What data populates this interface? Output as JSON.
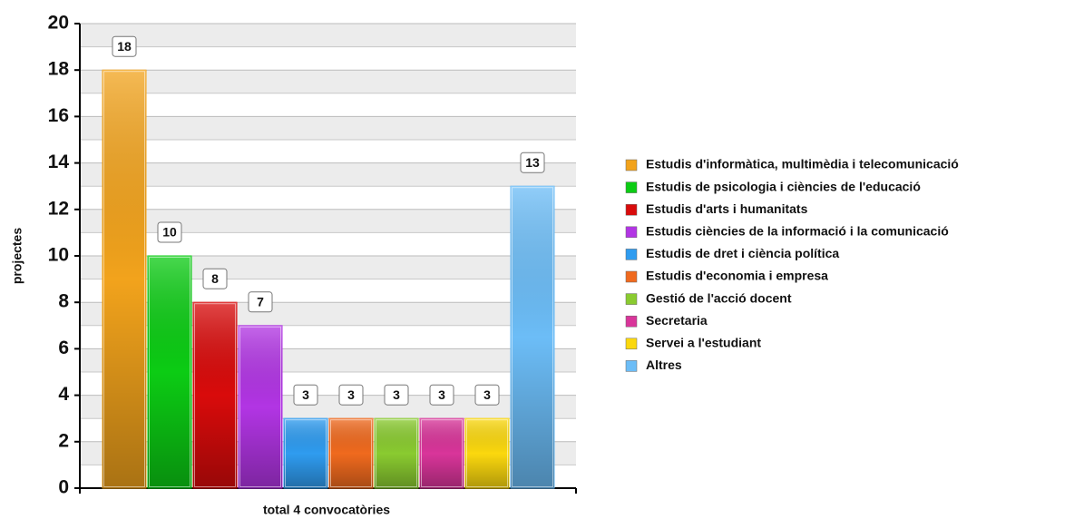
{
  "chart_data": {
    "type": "bar",
    "y_label": "projectes",
    "categories": [
      "total 4 convocatòries"
    ],
    "series": [
      {
        "name": "Estudis d'informàtica, multimèdia i telecomunicació",
        "color": "#f2a31c",
        "values": [
          18
        ]
      },
      {
        "name": "Estudis de psicologia i ciències de l'educació",
        "color": "#0ccc14",
        "values": [
          10
        ]
      },
      {
        "name": "Estudis d'arts i humanitats",
        "color": "#d90b0b",
        "values": [
          8
        ]
      },
      {
        "name": "Estudis ciències de la informació i la comunicació",
        "color": "#b235e4",
        "values": [
          7
        ]
      },
      {
        "name": "Estudis de dret i ciència política",
        "color": "#2f9cf0",
        "values": [
          3
        ]
      },
      {
        "name": "Estudis d'economia i empresa",
        "color": "#f06a1e",
        "values": [
          3
        ]
      },
      {
        "name": "Gestió de l'acció docent",
        "color": "#8acb30",
        "values": [
          3
        ]
      },
      {
        "name": "Secretaria",
        "color": "#d9359a",
        "values": [
          3
        ]
      },
      {
        "name": "Servei a l'estudiant",
        "color": "#fbd80e",
        "values": [
          3
        ]
      },
      {
        "name": "Altres",
        "color": "#6cbdf7",
        "values": [
          13
        ]
      }
    ],
    "ylim": [
      0,
      20
    ],
    "yticks": [
      0,
      2,
      4,
      6,
      8,
      10,
      12,
      14,
      16,
      18,
      20
    ],
    "grid": true,
    "legend": "right"
  }
}
